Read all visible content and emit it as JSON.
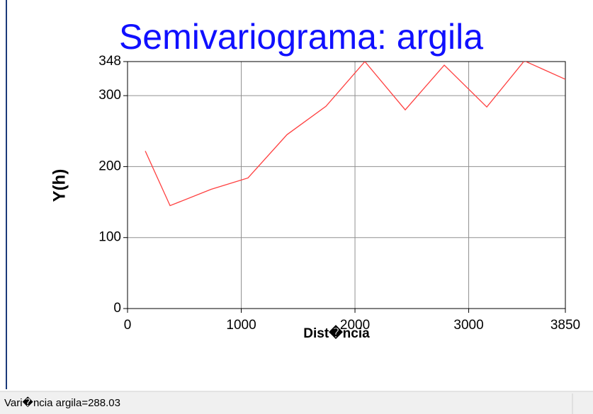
{
  "chart_data": {
    "type": "line",
    "title": "Semivariograma: argila",
    "xlabel": "Dist�ncia",
    "ylabel": "Y(h)",
    "x": [
      156,
      374,
      735,
      1059,
      1402,
      1745,
      2087,
      2442,
      2785,
      3159,
      3489,
      3850
    ],
    "series": [
      {
        "name": "argila",
        "color": "#ff4040",
        "values": [
          222,
          145,
          168,
          184,
          245,
          285,
          348,
          280,
          343,
          284,
          349,
          323
        ]
      }
    ],
    "xlim": [
      0,
      3850
    ],
    "xticks": [
      0,
      1000,
      2000,
      3000,
      3850
    ],
    "ylim": [
      0,
      348
    ],
    "yticks": [
      0,
      100,
      200,
      300,
      348
    ],
    "grid": true
  },
  "status_bar": {
    "text": "Vari�ncia argila=288.03"
  }
}
